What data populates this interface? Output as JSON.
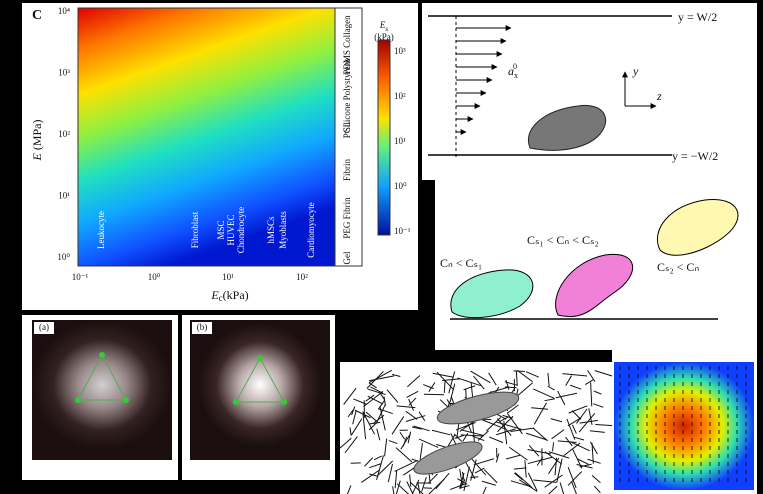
{
  "panel_c": {
    "label": "C",
    "x_label": {
      "symbol": "E",
      "sub": "c",
      "unit": "(kPa)"
    },
    "y_label": {
      "symbol": "E",
      "unit": "(MPa)"
    },
    "x_ticks": [
      "10⁻¹",
      "10⁰",
      "10¹",
      "10²"
    ],
    "y_ticks": [
      "10⁴",
      "10³",
      "10²",
      "10¹",
      "10⁰"
    ],
    "colorbar_title": {
      "symbol": "E",
      "sub": "s",
      "unit": "(kPa)"
    },
    "colorbar_ticks": [
      "10³",
      "10²",
      "10¹",
      "10⁰",
      "10⁻¹"
    ],
    "cell_types": [
      "Leukocyte",
      "Fibroblast",
      "MSC",
      "HUVEC",
      "Chondrocyte",
      "hMSCs",
      "Myoblasts",
      "Cardiomyocyte"
    ],
    "substrates": [
      "Gel",
      "PEG Fibrin",
      "Fibrin",
      "PCL",
      "Silicone Polystyrene",
      "PDMS Collagen"
    ]
  },
  "flow": {
    "top": "y = W/2",
    "bottom": "y = −W/2",
    "velocity": {
      "symbol": "a",
      "sub": "x",
      "sup": "0"
    },
    "axis_y": "y",
    "axis_z": "z"
  },
  "migration": {
    "conditions": [
      "Cₙ < Cₛ₁",
      "Cₛ₁ < Cₙ < Cₛ₂",
      "Cₛ₂ < Cₙ"
    ]
  },
  "patterns": {
    "labels": [
      "(a)",
      "(b)"
    ]
  }
}
